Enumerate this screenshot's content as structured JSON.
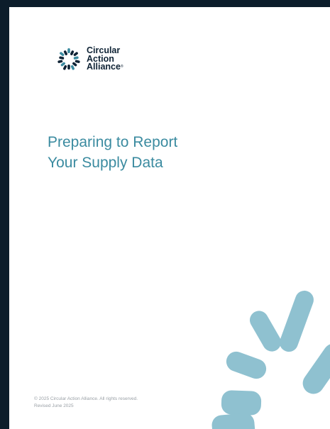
{
  "logo": {
    "lines": [
      "Circular",
      "Action",
      "Alliance"
    ],
    "mark": "®"
  },
  "title": {
    "lines": [
      "Preparing to Report",
      "Your Supply Data"
    ]
  },
  "footer": {
    "copyright": "© 2025 Circular Action Alliance. All rights reserved.",
    "revised": "Revised June 2025"
  }
}
